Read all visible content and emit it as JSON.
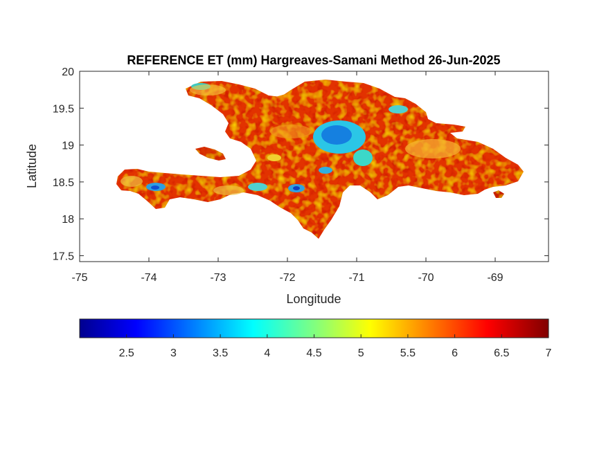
{
  "figure": {
    "title": "REFERENCE ET (mm) Hargreaves-Samani Method  26-Jun-2025",
    "xlabel": "Longitude",
    "ylabel": "Latitude",
    "xlim": [
      -75,
      -68.23
    ],
    "ylim": [
      17.42,
      20
    ],
    "xticks": [
      "-75",
      "-74",
      "-73",
      "-72",
      "-71",
      "-70",
      "-69"
    ],
    "yticks": [
      "20",
      "19.5",
      "19",
      "18.5",
      "18",
      "17.5"
    ]
  },
  "colorbar": {
    "colormap": "jet",
    "range": [
      2.0,
      7.0
    ],
    "ticks": [
      "2.5",
      "3",
      "3.5",
      "4",
      "4.5",
      "5",
      "5.5",
      "6",
      "6.5",
      "7"
    ]
  },
  "map": {
    "region": "Hispaniola (Haiti and Dominican Republic)",
    "dominant_color": "#d62a00",
    "low_et_areas": [
      "Cordillera Central highlands",
      "Massif de la Hotte",
      "Massif de la Selle",
      "Northwest Haiti peninsula tip"
    ]
  }
}
